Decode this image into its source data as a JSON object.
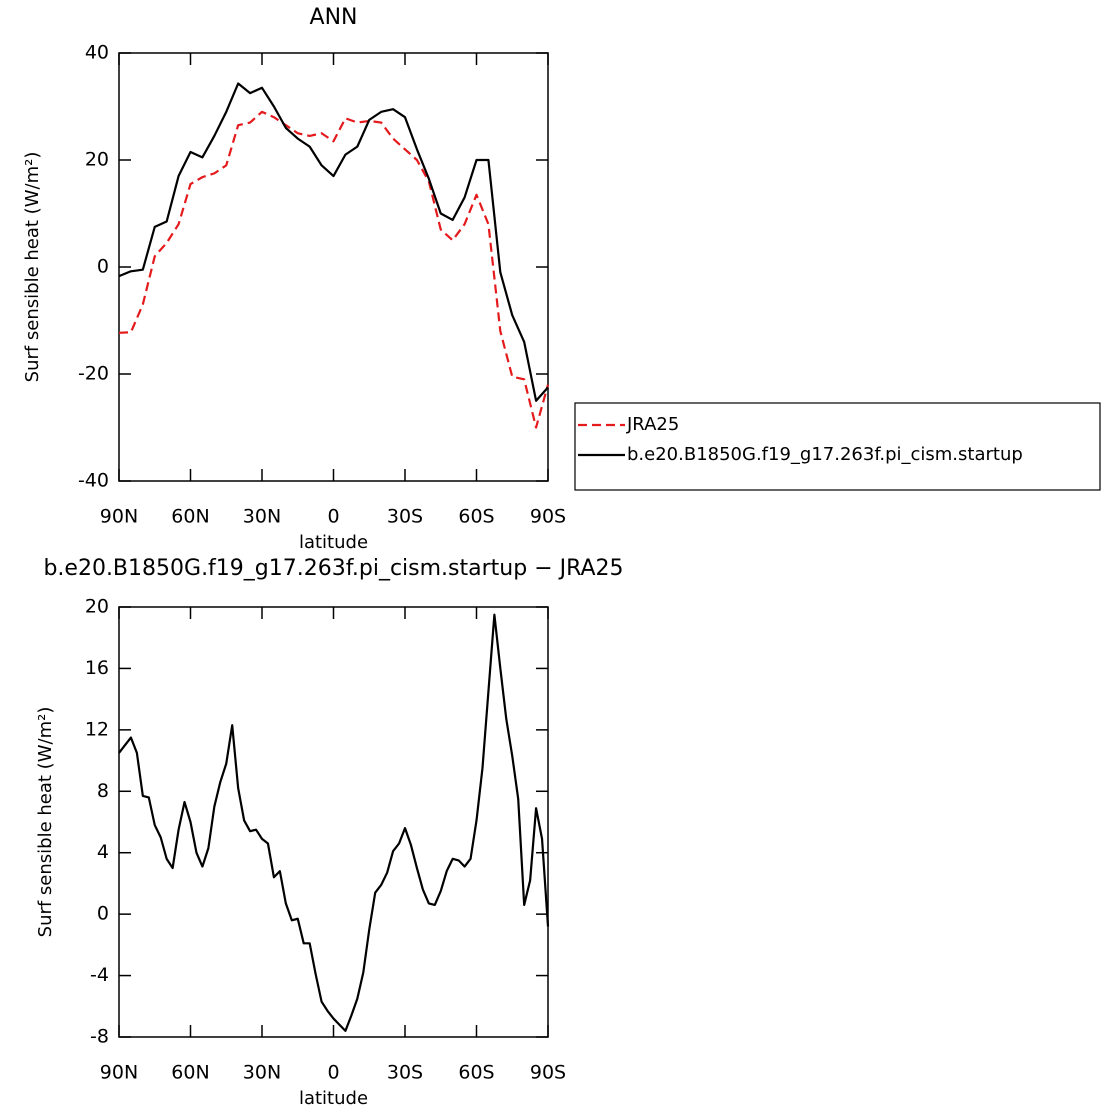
{
  "chart_data": [
    {
      "type": "line",
      "title": "ANN",
      "xlabel": "latitude",
      "ylabel": "Surf sensible heat (W/m²)",
      "x": [
        90,
        85,
        80,
        75,
        70,
        65,
        60,
        55,
        50,
        45,
        40,
        35,
        30,
        25,
        20,
        15,
        10,
        5,
        0,
        -5,
        -10,
        -15,
        -20,
        -25,
        -30,
        -35,
        -40,
        -45,
        -50,
        -55,
        -60,
        -65,
        -70,
        -75,
        -80,
        -85,
        -90
      ],
      "series": [
        {
          "name": "JRA25",
          "color": "#e41a1c",
          "dash": true,
          "values": [
            -12.3,
            -12.2,
            -7,
            2,
            4.5,
            8,
            15.5,
            16.8,
            17.5,
            19,
            26.5,
            27,
            29,
            28,
            26.5,
            25,
            24.5,
            25,
            23.5,
            27.8,
            27,
            27.3,
            27,
            24,
            22,
            20,
            16,
            7,
            5,
            8,
            13.5,
            8,
            -12,
            -20.5,
            -21,
            -30,
            -22
          ]
        },
        {
          "name": "b.e20.B1850G.f19_g17.263f.pi_cism.startup",
          "color": "#000000",
          "dash": false,
          "values": [
            -1.7,
            -0.8,
            -0.5,
            7.5,
            8.5,
            17,
            21.5,
            20.5,
            24.5,
            29,
            34.3,
            32.5,
            33.5,
            30,
            26,
            24,
            22.5,
            19,
            17,
            21,
            22.5,
            27.5,
            29,
            29.5,
            28,
            22,
            16.5,
            10,
            8.8,
            13,
            20,
            20,
            -1,
            -9,
            -14,
            -25,
            -22.5
          ]
        }
      ],
      "xlim": [
        90,
        -90
      ],
      "xticks": [
        {
          "value": 90,
          "label": "90N"
        },
        {
          "value": 60,
          "label": "60N"
        },
        {
          "value": 30,
          "label": "30N"
        },
        0,
        {
          "value": -30,
          "label": "30S"
        },
        {
          "value": -60,
          "label": "60S"
        },
        {
          "value": -90,
          "label": "90S"
        }
      ],
      "ylim": [
        -40,
        40
      ],
      "yticks": [
        -40,
        -20,
        0,
        20,
        40
      ],
      "legend": "right"
    },
    {
      "type": "line",
      "title": "b.e20.B1850G.f19_g17.263f.pi_cism.startup − JRA25",
      "xlabel": "latitude",
      "ylabel": "Surf sensible heat (W/m²)",
      "x": [
        90,
        87.5,
        85,
        82.5,
        80,
        77.5,
        75,
        72.5,
        70,
        67.5,
        65,
        62.5,
        60,
        57.5,
        55,
        52.5,
        50,
        47.5,
        45,
        42.5,
        40,
        37.5,
        35,
        32.5,
        30,
        27.5,
        25,
        22.5,
        20,
        17.5,
        15,
        12.5,
        10,
        7.5,
        5,
        2.5,
        0,
        -2.5,
        -5,
        -7.5,
        -10,
        -12.5,
        -15,
        -17.5,
        -20,
        -22.5,
        -25,
        -27.5,
        -30,
        -32.5,
        -35,
        -37.5,
        -40,
        -42.5,
        -45,
        -47.5,
        -50,
        -52.5,
        -55,
        -57.5,
        -60,
        -62.5,
        -65,
        -67.5,
        -70,
        -72.5,
        -75,
        -77.5,
        -80,
        -82.5,
        -85,
        -87.5,
        -90
      ],
      "series": [
        {
          "color": "#000000",
          "dash": false,
          "values": [
            10.5,
            11.0,
            11.5,
            10.5,
            7.7,
            7.6,
            5.8,
            5.0,
            3.6,
            3.0,
            5.5,
            7.3,
            6.0,
            4.0,
            3.1,
            4.3,
            7.0,
            8.6,
            9.8,
            12.3,
            8.2,
            6.1,
            5.4,
            5.5,
            4.9,
            4.6,
            2.4,
            2.8,
            0.7,
            -0.4,
            -0.3,
            -1.9,
            -1.9,
            -3.9,
            -5.7,
            -6.3,
            -6.8,
            -7.2,
            -7.6,
            -6.6,
            -5.5,
            -3.8,
            -1.0,
            1.4,
            1.9,
            2.7,
            4.1,
            4.6,
            5.6,
            4.5,
            3.0,
            1.6,
            0.7,
            0.6,
            1.5,
            2.8,
            3.6,
            3.5,
            3.1,
            3.6,
            6.1,
            9.5,
            14.5,
            19.5,
            16.0,
            12.7,
            10.3,
            7.5,
            0.6,
            2.2,
            6.9,
            4.9,
            -0.8
          ]
        }
      ],
      "xlim": [
        90,
        -90
      ],
      "xticks": [
        {
          "value": 90,
          "label": "90N"
        },
        {
          "value": 60,
          "label": "60N"
        },
        {
          "value": 30,
          "label": "30N"
        },
        0,
        {
          "value": -30,
          "label": "30S"
        },
        {
          "value": -60,
          "label": "60S"
        },
        {
          "value": -90,
          "label": "90S"
        }
      ],
      "ylim": [
        -8,
        20
      ],
      "yticks": [
        -8,
        -4,
        0,
        4,
        8,
        12,
        16,
        20
      ]
    }
  ]
}
